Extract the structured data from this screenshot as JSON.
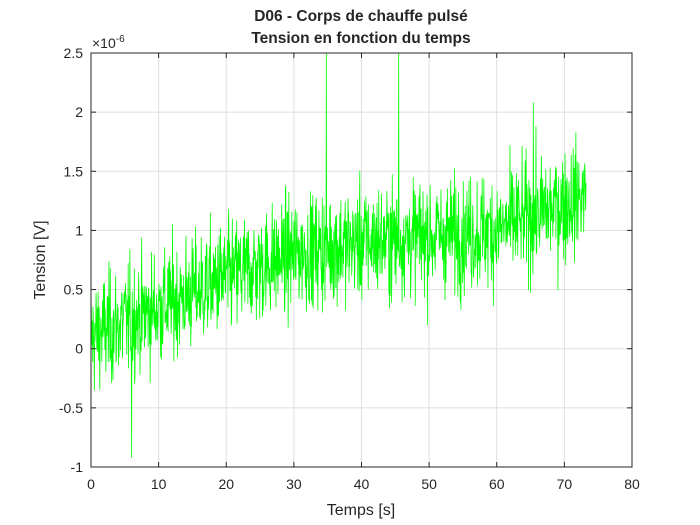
{
  "chart_data": {
    "type": "line",
    "title": "D06 - Corps de chauffe pulsé",
    "subtitle": "Tension en fonction du temps",
    "xlabel": "Temps [s]",
    "ylabel": "Tension [V]",
    "y_exponent": "×10",
    "y_exponent_power": "-6",
    "xlim": [
      0,
      80
    ],
    "ylim": [
      -1e-06,
      2.5e-06
    ],
    "xticks": [
      0,
      10,
      20,
      30,
      40,
      50,
      60,
      70,
      80
    ],
    "xtick_labels": [
      "0",
      "10",
      "20",
      "30",
      "40",
      "50",
      "60",
      "70",
      "80"
    ],
    "yticks": [
      -1e-06,
      -5e-07,
      0,
      5e-07,
      1e-06,
      1.5e-06,
      2e-06,
      2.5e-06
    ],
    "ytick_labels": [
      "-1",
      "-0.5",
      "0",
      "0.5",
      "1",
      "1.5",
      "2",
      "2.5"
    ],
    "grid": true,
    "series": [
      {
        "color": "#00ff00",
        "sample_interval_s": 0.05,
        "x_range": [
          0,
          73.2
        ],
        "trend": {
          "x": [
            0,
            10,
            20,
            30,
            40,
            50,
            60,
            73
          ],
          "y": [
            1e-07,
            3.5e-07,
            6e-07,
            8e-07,
            9e-07,
            9.5e-07,
            1e-06,
            1.3e-06
          ]
        },
        "noise_spread": 4e-07,
        "notable_points": [
          {
            "x": 6.0,
            "y": -9.2e-07
          },
          {
            "x": 34.8,
            "y": 2.5e-06
          },
          {
            "x": 45.5,
            "y": 2.5e-06
          },
          {
            "x": 65.4,
            "y": 2.08e-06
          },
          {
            "x": 73.2,
            "y": 1.4e-06
          }
        ]
      }
    ]
  }
}
